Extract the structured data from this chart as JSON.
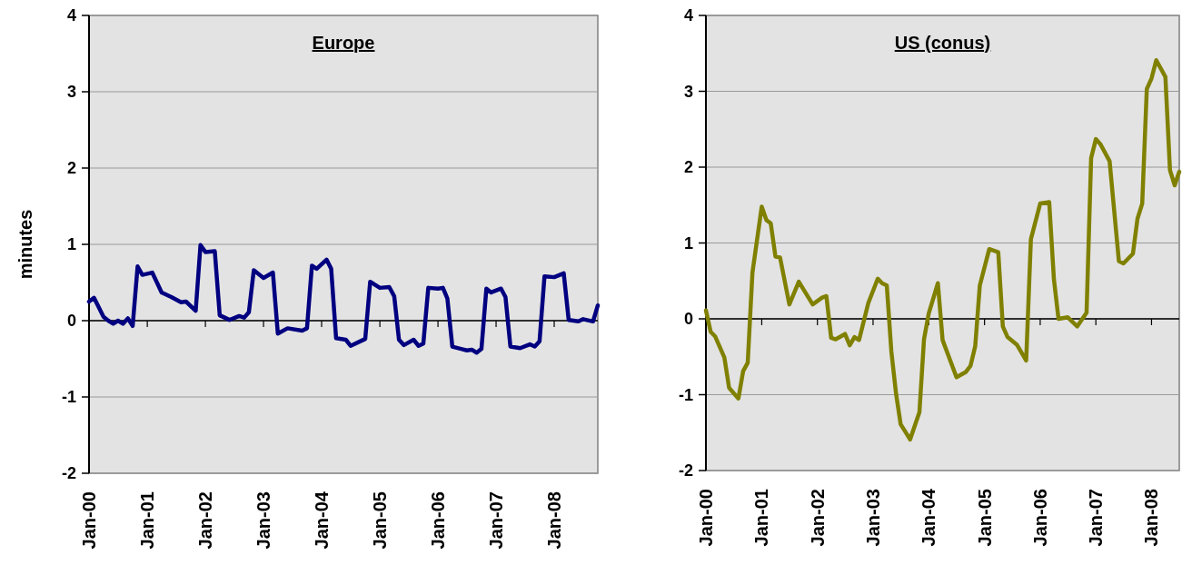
{
  "chart_data": [
    {
      "type": "line",
      "title": "Europe",
      "ylabel": "minutes",
      "xlim": [
        "2000-01",
        "2008-10"
      ],
      "ylim": [
        -2,
        4
      ],
      "yticks": [
        -2,
        -1,
        0,
        1,
        2,
        3,
        4
      ],
      "grid": "y",
      "xticks": [
        {
          "value": "2000-01",
          "label": "Jan-00"
        },
        {
          "value": "2001-01",
          "label": "Jan-01"
        },
        {
          "value": "2002-01",
          "label": "Jan-02"
        },
        {
          "value": "2003-01",
          "label": "Jan-03"
        },
        {
          "value": "2004-01",
          "label": "Jan-04"
        },
        {
          "value": "2005-01",
          "label": "Jan-05"
        },
        {
          "value": "2006-01",
          "label": "Jan-06"
        },
        {
          "value": "2007-01",
          "label": "Jan-07"
        },
        {
          "value": "2008-01",
          "label": "Jan-08"
        }
      ],
      "x": [
        "2000-01",
        "2000-02",
        "2000-04",
        "2000-05",
        "2000-06",
        "2000-07",
        "2000-08",
        "2000-09",
        "2000-10",
        "2000-11",
        "2000-12",
        "2001-02",
        "2001-04",
        "2001-06",
        "2001-08",
        "2001-09",
        "2001-11",
        "2001-12",
        "2002-01",
        "2002-03",
        "2002-04",
        "2002-06",
        "2002-08",
        "2002-09",
        "2002-10",
        "2002-11",
        "2003-01",
        "2003-03",
        "2003-04",
        "2003-06",
        "2003-09",
        "2003-10",
        "2003-11",
        "2003-12",
        "2004-02",
        "2004-03",
        "2004-04",
        "2004-06",
        "2004-07",
        "2004-10",
        "2004-11",
        "2005-01",
        "2005-03",
        "2005-04",
        "2005-05",
        "2005-06",
        "2005-08",
        "2005-09",
        "2005-10",
        "2005-11",
        "2006-01",
        "2006-02",
        "2006-03",
        "2006-04",
        "2006-07",
        "2006-08",
        "2006-09",
        "2006-10",
        "2006-11",
        "2006-12",
        "2007-02",
        "2007-03",
        "2007-04",
        "2007-06",
        "2007-08",
        "2007-09",
        "2007-10",
        "2007-11",
        "2008-01",
        "2008-03",
        "2008-04",
        "2008-06",
        "2008-07",
        "2008-09",
        "2008-10"
      ],
      "series": [
        {
          "color": "#000080",
          "values": [
            0.25,
            0.3,
            0.05,
            0,
            -0.04,
            0,
            -0.04,
            0.03,
            -0.07,
            0.71,
            0.6,
            0.63,
            0.37,
            0.31,
            0.24,
            0.25,
            0.13,
            0.99,
            0.9,
            0.91,
            0.07,
            0.01,
            0.06,
            0.04,
            0.11,
            0.66,
            0.56,
            0.63,
            -0.17,
            -0.1,
            -0.13,
            -0.1,
            0.72,
            0.68,
            0.8,
            0.68,
            -0.23,
            -0.25,
            -0.33,
            -0.24,
            0.51,
            0.43,
            0.44,
            0.32,
            -0.25,
            -0.32,
            -0.25,
            -0.33,
            -0.3,
            0.43,
            0.42,
            0.43,
            0.29,
            -0.34,
            -0.39,
            -0.38,
            -0.42,
            -0.37,
            0.42,
            0.37,
            0.42,
            0.31,
            -0.34,
            -0.36,
            -0.31,
            -0.34,
            -0.27,
            0.58,
            0.57,
            0.62,
            0.01,
            -0.01,
            0.02,
            -0.01,
            0.2
          ]
        }
      ]
    },
    {
      "type": "line",
      "title": "US (conus)",
      "xlim": [
        "2000-01",
        "2008-07"
      ],
      "ylim": [
        -2,
        4
      ],
      "yticks": [
        -2,
        -1,
        0,
        1,
        2,
        3,
        4
      ],
      "grid": "y",
      "xticks": [
        {
          "value": "2000-01",
          "label": "Jan-00"
        },
        {
          "value": "2001-01",
          "label": "Jan-01"
        },
        {
          "value": "2002-01",
          "label": "Jan-02"
        },
        {
          "value": "2003-01",
          "label": "Jan-03"
        },
        {
          "value": "2004-01",
          "label": "Jan-04"
        },
        {
          "value": "2005-01",
          "label": "Jan-05"
        },
        {
          "value": "2006-01",
          "label": "Jan-06"
        },
        {
          "value": "2007-01",
          "label": "Jan-07"
        },
        {
          "value": "2008-01",
          "label": "Jan-08"
        }
      ],
      "x": [
        "2000-01",
        "2000-02",
        "2000-03",
        "2000-05",
        "2000-06",
        "2000-08",
        "2000-09",
        "2000-10",
        "2000-11",
        "2001-01",
        "2001-02",
        "2001-03",
        "2001-04",
        "2001-05",
        "2001-07",
        "2001-09",
        "2001-12",
        "2002-02",
        "2002-03",
        "2002-04",
        "2002-05",
        "2002-07",
        "2002-08",
        "2002-09",
        "2002-10",
        "2002-12",
        "2003-02",
        "2003-03",
        "2003-04",
        "2003-05",
        "2003-06",
        "2003-07",
        "2003-08",
        "2003-09",
        "2003-11",
        "2003-12",
        "2004-01",
        "2004-03",
        "2004-04",
        "2004-07",
        "2004-09",
        "2004-10",
        "2004-11",
        "2004-12",
        "2005-02",
        "2005-04",
        "2005-05",
        "2005-06",
        "2005-08",
        "2005-10",
        "2005-11",
        "2006-01",
        "2006-03",
        "2006-04",
        "2006-05",
        "2006-07",
        "2006-09",
        "2006-11",
        "2006-12",
        "2007-01",
        "2007-02",
        "2007-04",
        "2007-06",
        "2007-07",
        "2007-09",
        "2007-10",
        "2007-11",
        "2007-12",
        "2008-01",
        "2008-02",
        "2008-04",
        "2008-05",
        "2008-06",
        "2008-07"
      ],
      "series": [
        {
          "color": "#808000",
          "values": [
            0.11,
            -0.17,
            -0.23,
            -0.51,
            -0.91,
            -1.05,
            -0.69,
            -0.58,
            0.61,
            1.48,
            1.3,
            1.26,
            0.82,
            0.81,
            0.19,
            0.49,
            0.19,
            0.28,
            0.3,
            -0.25,
            -0.27,
            -0.2,
            -0.35,
            -0.24,
            -0.28,
            0.21,
            0.53,
            0.47,
            0.44,
            -0.43,
            -0.99,
            -1.39,
            -1.49,
            -1.59,
            -1.23,
            -0.27,
            0.07,
            0.47,
            -0.28,
            -0.77,
            -0.7,
            -0.62,
            -0.36,
            0.44,
            0.92,
            0.88,
            -0.1,
            -0.24,
            -0.34,
            -0.55,
            1.05,
            1.52,
            1.54,
            0.52,
            0,
            0.02,
            -0.1,
            0.08,
            2.12,
            2.37,
            2.3,
            2.08,
            0.76,
            0.73,
            0.86,
            1.32,
            1.52,
            3.03,
            3.17,
            3.41,
            3.19,
            1.96,
            1.76,
            1.94
          ]
        }
      ]
    }
  ]
}
